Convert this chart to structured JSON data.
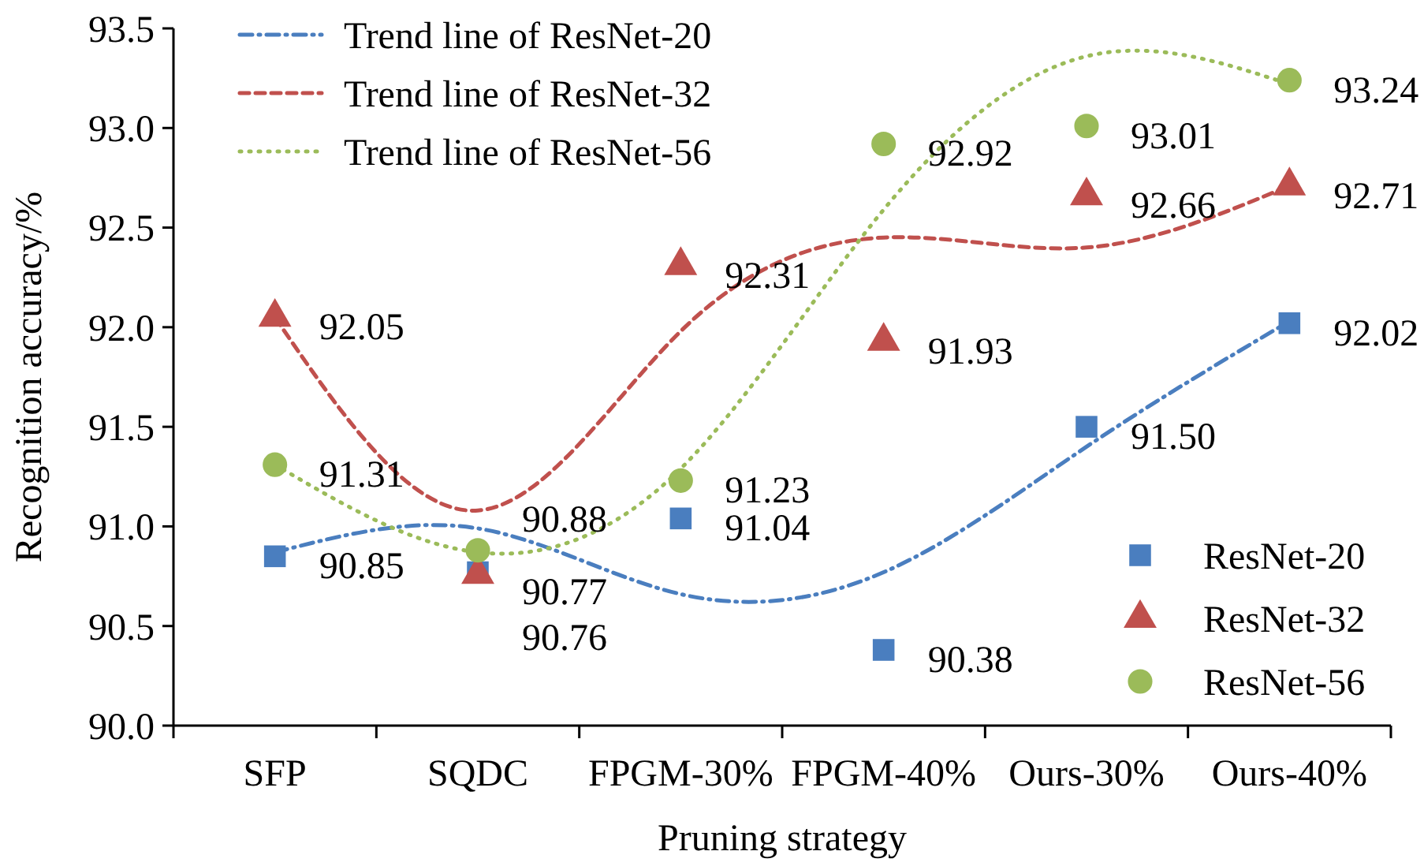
{
  "chart_data": {
    "type": "scatter",
    "xlabel": "Pruning strategy",
    "ylabel": "Recognition accuracy/%",
    "categories": [
      "SFP",
      "SQDC",
      "FPGM-30%",
      "FPGM-40%",
      "Ours-30%",
      "Ours-40%"
    ],
    "ylim": [
      90,
      93.5
    ],
    "yticks": [
      {
        "value": 90,
        "label": "90.0"
      },
      {
        "value": 90.5,
        "label": "90.5"
      },
      {
        "value": 91,
        "label": "91.0"
      },
      {
        "value": 91.5,
        "label": "91.5"
      },
      {
        "value": 92,
        "label": "92.0"
      },
      {
        "value": 92.5,
        "label": "92.5"
      },
      {
        "value": 93,
        "label": "93.0"
      },
      {
        "value": 93.5,
        "label": "93.5"
      }
    ],
    "grid": false,
    "legend": "top left",
    "series": [
      {
        "name": "Trend line of ResNet-20",
        "type": "line",
        "color": "#4a7ebf",
        "line_style": "dashdot",
        "marker": "none",
        "values": [
          90.87,
          90.99,
          90.66,
          90.77,
          91.4,
          92.03
        ]
      },
      {
        "name": "Trend line of ResNet-32",
        "type": "line",
        "color": "#c0504d",
        "line_style": "dashed",
        "marker": "none",
        "values": [
          92.05,
          91.08,
          91.98,
          92.45,
          92.4,
          92.71
        ]
      },
      {
        "name": "Trend line of ResNet-56",
        "type": "line",
        "color": "#9bbb59",
        "line_style": "dotted",
        "marker": "none",
        "values": [
          91.31,
          90.87,
          91.29,
          92.59,
          93.36,
          93.22
        ]
      },
      {
        "name": "ResNet-20",
        "color": "#4a7ebf",
        "marker": "square",
        "values": [
          90.85,
          90.77,
          91.04,
          90.38,
          91.5,
          92.02
        ],
        "value_labels": [
          "90.85",
          "90.77",
          "91.04",
          "90.38",
          "91.50",
          "92.02"
        ]
      },
      {
        "name": "ResNet-32",
        "color": "#c0504d",
        "marker": "triangle",
        "values": [
          92.05,
          90.76,
          92.31,
          91.93,
          92.66,
          92.71
        ],
        "value_labels": [
          "92.05",
          "90.76",
          "92.31",
          "91.93",
          "92.66",
          "92.71"
        ]
      },
      {
        "name": "ResNet-56",
        "color": "#9bbb59",
        "marker": "circle",
        "values": [
          91.31,
          90.88,
          91.23,
          92.92,
          93.01,
          93.24
        ],
        "value_labels": [
          "91.31",
          "90.88",
          "91.23",
          "92.92",
          "93.01",
          "93.24"
        ]
      }
    ]
  }
}
